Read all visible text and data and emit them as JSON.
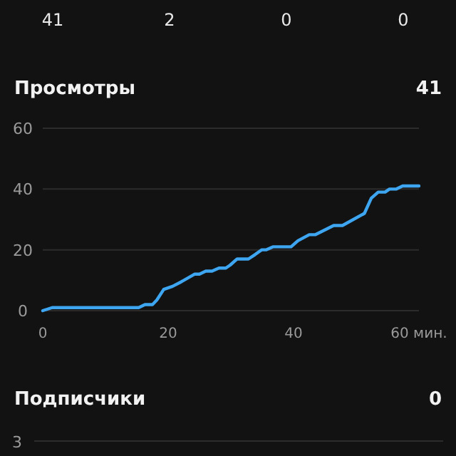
{
  "chart_data": [
    {
      "type": "other",
      "annotations": [
        "41",
        "2",
        "0",
        "0"
      ]
    },
    {
      "type": "line",
      "title": "Просмотры",
      "annotations": [
        "41"
      ],
      "x": [
        0,
        1.5,
        15.3,
        16.3,
        17.5,
        18.2,
        19.3,
        20.7,
        22.1,
        24.2,
        25,
        26,
        27,
        28.1,
        29.2,
        29.9,
        31,
        32.8,
        33.9,
        34.9,
        35.6,
        36.7,
        39.6,
        40.7,
        42.5,
        43.5,
        46.4,
        47.8,
        51.3,
        52.4,
        53.5,
        54.6,
        55.3,
        56.4,
        57.4,
        60
      ],
      "series": [
        {
          "color": "#3ea6f0",
          "values": [
            0,
            1,
            1,
            2,
            2,
            3.5,
            7,
            8,
            9.5,
            12,
            12,
            13,
            13,
            14,
            14,
            15,
            17,
            17,
            18.5,
            20,
            20,
            21,
            21,
            23,
            25,
            25,
            28,
            28,
            32,
            37,
            39,
            39,
            40,
            40,
            41,
            41
          ]
        }
      ],
      "xlim": [
        0,
        60
      ],
      "xticks": [
        0,
        20,
        40,
        {
          "value": 60,
          "label": "60 мин."
        }
      ],
      "ylim": [
        0,
        60
      ],
      "yticks": [
        0,
        20,
        40,
        60
      ],
      "grid": "y"
    },
    {
      "type": "other",
      "title": "Подписчики",
      "annotations": [
        "0",
        "3"
      ]
    }
  ]
}
